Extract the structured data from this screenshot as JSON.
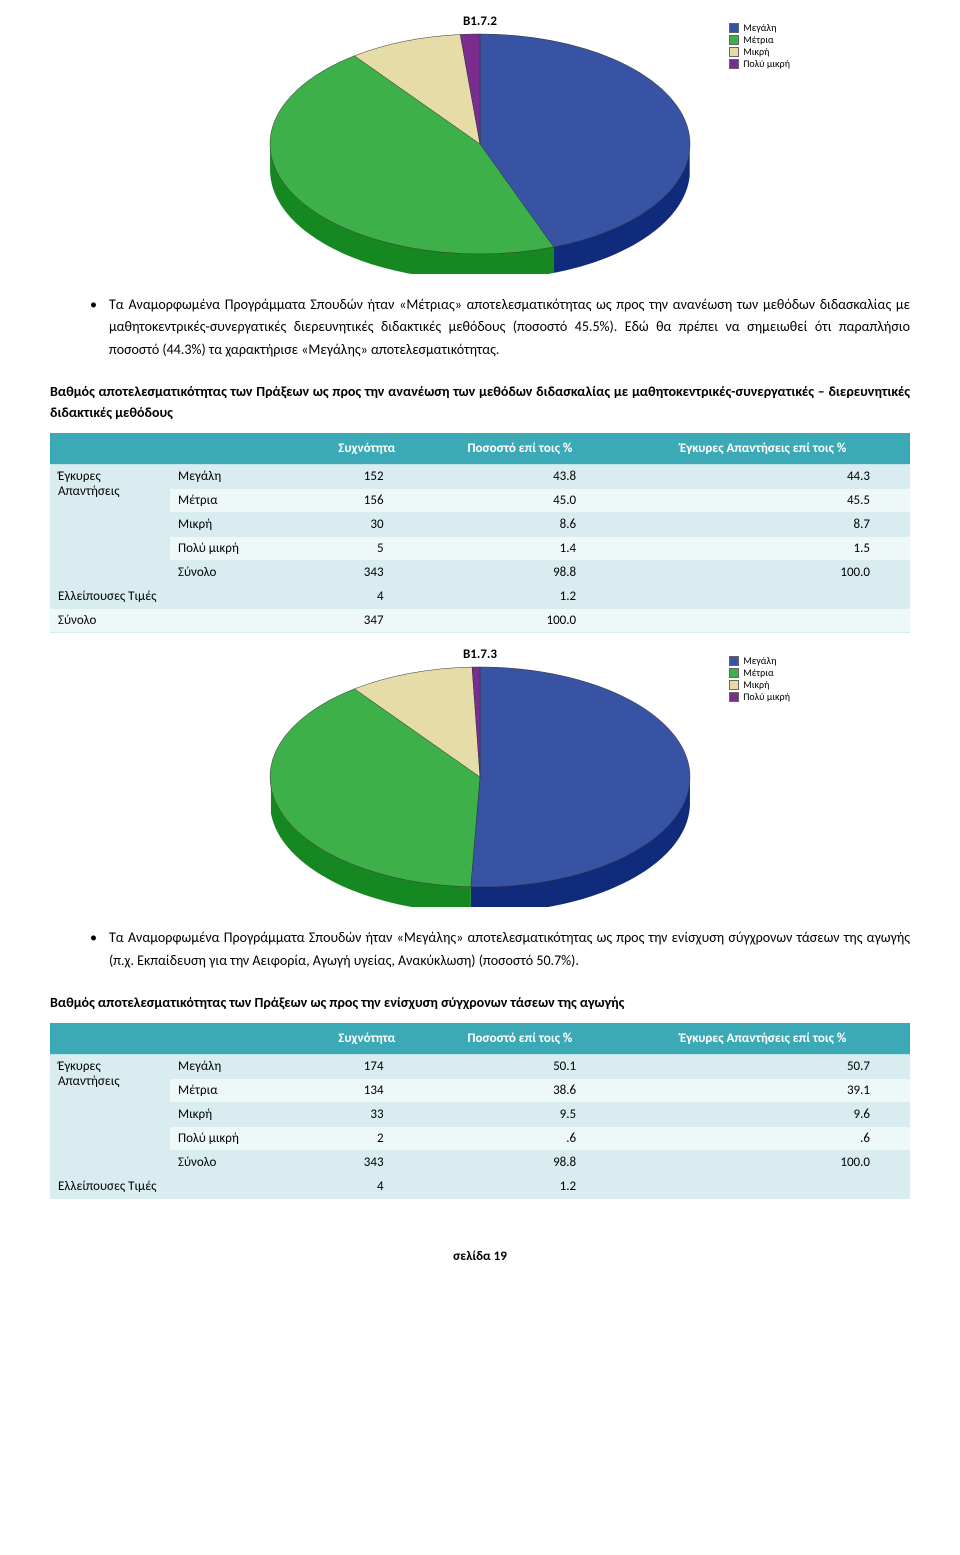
{
  "chart1": {
    "title": "B1.7.2",
    "type": "pie_3d",
    "slices": [
      {
        "label": "Μεγάλη",
        "value": 44.3,
        "color": "#3953a4"
      },
      {
        "label": "Μέτρια",
        "value": 45.5,
        "color": "#3eb049"
      },
      {
        "label": "Μικρή",
        "value": 8.7,
        "color": "#e6dca8"
      },
      {
        "label": "Πολύ μικρή",
        "value": 1.5,
        "color": "#7a2d8e"
      }
    ],
    "background_color": "#ffffff",
    "legend_font_size": 10,
    "title_font_size": 13
  },
  "para1": "Τα Αναμορφωμένα Προγράμματα Σπουδών ήταν «Μέτριας» αποτελεσματικότητας ως προς την ανανέωση των μεθόδων διδασκαλίας με μαθητοκεντρικές-συνεργατικές διερευνητικές διδακτικές μεθόδους (ποσοστό 45.5%). Εδώ θα πρέπει να σημειωθεί ότι παραπλήσιο ποσοστό (44.3%) τα χαρακτήρισε «Μεγάλης» αποτελεσματικότητας.",
  "caption1": "Βαθμός αποτελεσματικότητας των Πράξεων ως προς την ανανέωση των μεθόδων διδασκαλίας με μαθητοκεντρικές-συνεργατικές – διερευνητικές διδακτικές μεθόδους",
  "table_headers": {
    "freq": "Συχνότητα",
    "pct": "Ποσοστό επί τοις %",
    "valid_pct": "Έγκυρες Απαντήσεις επί τοις %"
  },
  "row_labels": {
    "valid": "Έγκυρες Απαντήσεις",
    "missing": "Ελλείπουσες Τιμές",
    "total": "Σύνολο"
  },
  "table1": {
    "rows": [
      {
        "label": "Μεγάλη",
        "freq": "152",
        "pct": "43.8",
        "vpct": "44.3"
      },
      {
        "label": "Μέτρια",
        "freq": "156",
        "pct": "45.0",
        "vpct": "45.5"
      },
      {
        "label": "Μικρή",
        "freq": "30",
        "pct": "8.6",
        "vpct": "8.7"
      },
      {
        "label": "Πολύ μικρή",
        "freq": "5",
        "pct": "1.4",
        "vpct": "1.5"
      },
      {
        "label": "Σύνολο",
        "freq": "343",
        "pct": "98.8",
        "vpct": "100.0"
      }
    ],
    "missing": {
      "freq": "4",
      "pct": "1.2"
    },
    "total": {
      "freq": "347",
      "pct": "100.0"
    }
  },
  "chart2": {
    "title": "B1.7.3",
    "type": "pie_3d",
    "slices": [
      {
        "label": "Μεγάλη",
        "value": 50.7,
        "color": "#3953a4"
      },
      {
        "label": "Μέτρια",
        "value": 39.1,
        "color": "#3eb049"
      },
      {
        "label": "Μικρή",
        "value": 9.6,
        "color": "#e6dca8"
      },
      {
        "label": "Πολύ μικρή",
        "value": 0.6,
        "color": "#7a2d8e"
      }
    ],
    "background_color": "#ffffff",
    "legend_font_size": 10,
    "title_font_size": 13
  },
  "para2": "Τα Αναμορφωμένα Προγράμματα Σπουδών ήταν «Μεγάλης» αποτελεσματικότητας ως προς την ενίσχυση σύγχρονων τάσεων της αγωγής (π.χ. Εκπαίδευση για την Αειφορία, Αγωγή υγείας, Ανακύκλωση) (ποσοστό 50.7%).",
  "caption2": "Βαθμός αποτελεσματικότητας των Πράξεων ως προς την ενίσχυση σύγχρονων τάσεων της αγωγής",
  "table2": {
    "rows": [
      {
        "label": "Μεγάλη",
        "freq": "174",
        "pct": "50.1",
        "vpct": "50.7"
      },
      {
        "label": "Μέτρια",
        "freq": "134",
        "pct": "38.6",
        "vpct": "39.1"
      },
      {
        "label": "Μικρή",
        "freq": "33",
        "pct": "9.5",
        "vpct": "9.6"
      },
      {
        "label": "Πολύ μικρή",
        "freq": "2",
        "pct": ".6",
        "vpct": ".6"
      },
      {
        "label": "Σύνολο",
        "freq": "343",
        "pct": "98.8",
        "vpct": "100.0"
      }
    ],
    "missing": {
      "freq": "4",
      "pct": "1.2"
    }
  },
  "footer": "σελίδα 19"
}
